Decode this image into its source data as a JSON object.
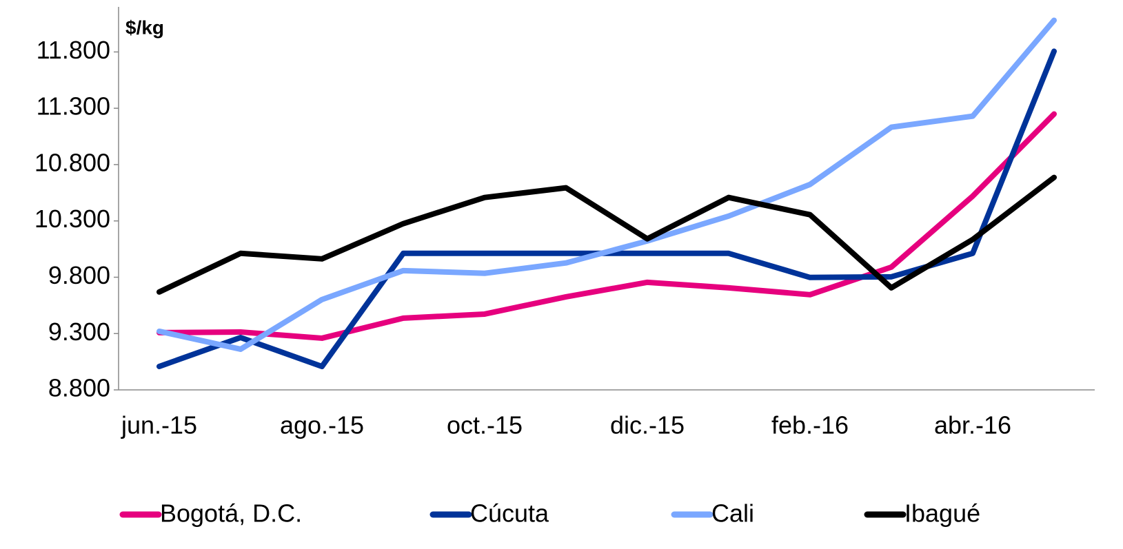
{
  "chart_data": {
    "type": "line",
    "y_axis_label": "$/kg",
    "categories": [
      "jun.-15",
      null,
      "ago.-15",
      null,
      "oct.-15",
      null,
      "dic.-15",
      null,
      "feb.-16",
      null,
      "abr.-16",
      null
    ],
    "series": [
      {
        "name": "Bogotá, D.C.",
        "color": "#e6007e",
        "values": [
          9308,
          9314,
          9259,
          9437,
          9473,
          9626,
          9755,
          9706,
          9645,
          9890,
          10520,
          11249
        ]
      },
      {
        "name": "Cúcuta",
        "color": "#003399",
        "values": [
          9008,
          9265,
          9008,
          10012,
          10012,
          10012,
          10012,
          10012,
          9798,
          9804,
          10012,
          11806
        ]
      },
      {
        "name": "Cali",
        "color": "#7aa7ff",
        "values": [
          9320,
          9161,
          9602,
          9859,
          9835,
          9927,
          10122,
          10343,
          10624,
          11132,
          11230,
          12081
        ]
      },
      {
        "name": "Ibagué",
        "color": "#000000",
        "values": [
          9669,
          10012,
          9963,
          10276,
          10508,
          10594,
          10141,
          10508,
          10355,
          9706,
          10135,
          10686
        ]
      }
    ],
    "ylim": [
      8800,
      12200
    ],
    "yticks": [
      {
        "value": 8800,
        "label": "8.800"
      },
      {
        "value": 9300,
        "label": "9.300"
      },
      {
        "value": 9800,
        "label": "9.800"
      },
      {
        "value": 10300,
        "label": "10.300"
      },
      {
        "value": 10800,
        "label": "10.800"
      },
      {
        "value": 11300,
        "label": "11.300"
      },
      {
        "value": 11800,
        "label": "11.800"
      }
    ],
    "grid": false
  }
}
